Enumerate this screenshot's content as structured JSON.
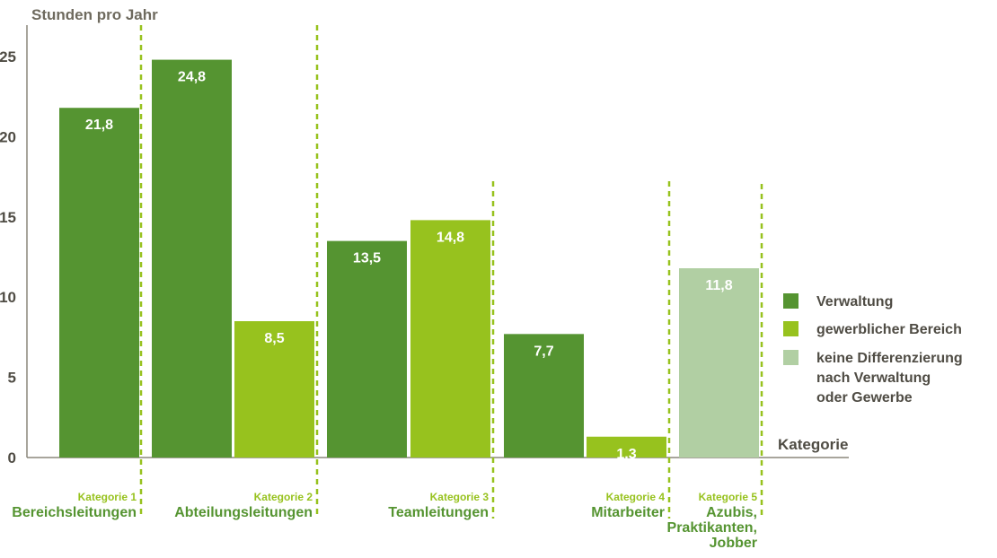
{
  "chart_data": {
    "type": "bar",
    "ylabel": "Stunden pro Jahr",
    "xlabel": "Kategorie",
    "ylim": [
      0,
      25
    ],
    "yticks": [
      "0",
      "5",
      "10",
      "15",
      "20",
      "25"
    ],
    "legend_placement": "right",
    "grid": false,
    "categories": [
      {
        "num": "Kategorie 1",
        "name": [
          "Bereichsleitungen"
        ]
      },
      {
        "num": "Kategorie 2",
        "name": [
          "Abteilungsleitungen"
        ]
      },
      {
        "num": "Kategorie 3",
        "name": [
          "Teamleitungen"
        ]
      },
      {
        "num": "Kategorie 4",
        "name": [
          "Mitarbeiter"
        ]
      },
      {
        "num": "Kategorie 5",
        "name": [
          "Azubis,",
          "Praktikanten,",
          "Jobber"
        ]
      }
    ],
    "series": [
      {
        "name": "Verwaltung",
        "color": "#559431"
      },
      {
        "name": "gewerblicher Bereich",
        "color": "#97c21e"
      },
      {
        "name_lines": [
          "keine Differenzierung",
          "nach Verwaltung",
          "oder Gewerbe"
        ],
        "color": "#b1cfa3"
      }
    ],
    "bars": [
      {
        "category": 0,
        "series": 0,
        "value": 21.8,
        "label": "21,8"
      },
      {
        "category": 1,
        "series": 0,
        "value": 24.8,
        "label": "24,8"
      },
      {
        "category": 1,
        "series": 1,
        "value": 8.5,
        "label": "8,5"
      },
      {
        "category": 2,
        "series": 0,
        "value": 13.5,
        "label": "13,5"
      },
      {
        "category": 2,
        "series": 1,
        "value": 14.8,
        "label": "14,8"
      },
      {
        "category": 3,
        "series": 0,
        "value": 7.7,
        "label": "7,7"
      },
      {
        "category": 3,
        "series": 1,
        "value": 1.3,
        "label": "1,3"
      },
      {
        "category": 4,
        "series": 2,
        "value": 11.8,
        "label": "11,8"
      }
    ],
    "colors": {
      "axis": "#8c877b",
      "divider": "#97c21e",
      "category_number": "#97c21e",
      "category_name": "#559431"
    }
  }
}
